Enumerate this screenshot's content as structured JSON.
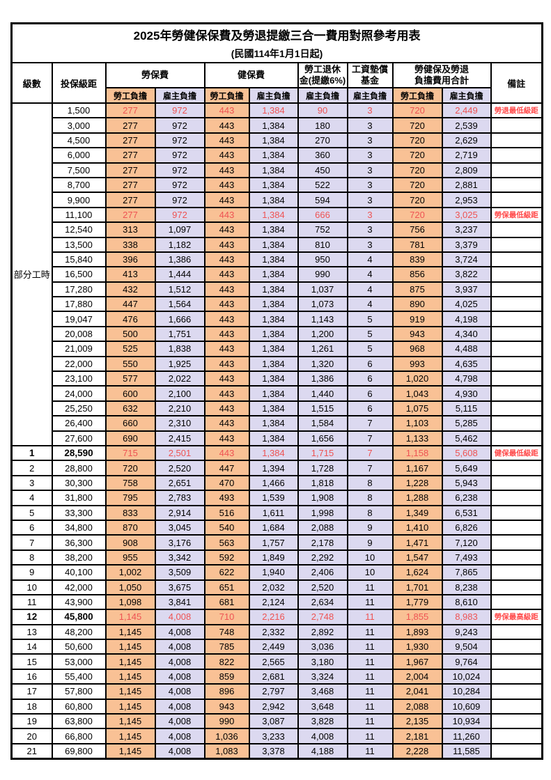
{
  "title": "2025年勞健保保費及勞退提繳三合一費用對照參考用表",
  "subtitle": "(民國114年1月1日起)",
  "header": {
    "level": "級數",
    "salary": "投保級距",
    "labor_group": "勞保費",
    "health_group": "健保費",
    "pension_group": "勞工退休\n金(提繳6%)",
    "wage_fund_group": "工資墊償\n基金",
    "total_group": "勞健保及勞退\n負擔費用合計",
    "remark": "備註",
    "employee": "勞工負擔",
    "employer": "雇主負擔"
  },
  "colors": {
    "employee_bg": "#f9c195",
    "employer_bg": "#dcd9f0",
    "highlight_text": "#ee5353",
    "remark_text": "#ff4b4b",
    "grid": "#000000"
  },
  "rows": [
    {
      "level": "部分工時",
      "group_rowspan": 23,
      "salary": "1,500",
      "labor_emp": "277",
      "labor_er": "972",
      "health_emp": "443",
      "health_er": "1,384",
      "pension_er": "90",
      "fund_er": "3",
      "total_emp": "720",
      "total_er": "2,449",
      "remark": "勞退最低級距",
      "red": true,
      "bold": false
    },
    {
      "salary": "3,000",
      "labor_emp": "277",
      "labor_er": "972",
      "health_emp": "443",
      "health_er": "1,384",
      "pension_er": "180",
      "fund_er": "3",
      "total_emp": "720",
      "total_er": "2,539",
      "remark": "",
      "red": false,
      "bold": false
    },
    {
      "salary": "4,500",
      "labor_emp": "277",
      "labor_er": "972",
      "health_emp": "443",
      "health_er": "1,384",
      "pension_er": "270",
      "fund_er": "3",
      "total_emp": "720",
      "total_er": "2,629",
      "remark": "",
      "red": false,
      "bold": false
    },
    {
      "salary": "6,000",
      "labor_emp": "277",
      "labor_er": "972",
      "health_emp": "443",
      "health_er": "1,384",
      "pension_er": "360",
      "fund_er": "3",
      "total_emp": "720",
      "total_er": "2,719",
      "remark": "",
      "red": false,
      "bold": false
    },
    {
      "salary": "7,500",
      "labor_emp": "277",
      "labor_er": "972",
      "health_emp": "443",
      "health_er": "1,384",
      "pension_er": "450",
      "fund_er": "3",
      "total_emp": "720",
      "total_er": "2,809",
      "remark": "",
      "red": false,
      "bold": false
    },
    {
      "salary": "8,700",
      "labor_emp": "277",
      "labor_er": "972",
      "health_emp": "443",
      "health_er": "1,384",
      "pension_er": "522",
      "fund_er": "3",
      "total_emp": "720",
      "total_er": "2,881",
      "remark": "",
      "red": false,
      "bold": false
    },
    {
      "salary": "9,900",
      "labor_emp": "277",
      "labor_er": "972",
      "health_emp": "443",
      "health_er": "1,384",
      "pension_er": "594",
      "fund_er": "3",
      "total_emp": "720",
      "total_er": "2,953",
      "remark": "",
      "red": false,
      "bold": false
    },
    {
      "salary": "11,100",
      "labor_emp": "277",
      "labor_er": "972",
      "health_emp": "443",
      "health_er": "1,384",
      "pension_er": "666",
      "fund_er": "3",
      "total_emp": "720",
      "total_er": "3,025",
      "remark": "勞保最低級距",
      "red": true,
      "bold": false
    },
    {
      "salary": "12,540",
      "labor_emp": "313",
      "labor_er": "1,097",
      "health_emp": "443",
      "health_er": "1,384",
      "pension_er": "752",
      "fund_er": "3",
      "total_emp": "756",
      "total_er": "3,237",
      "remark": "",
      "red": false,
      "bold": false
    },
    {
      "salary": "13,500",
      "labor_emp": "338",
      "labor_er": "1,182",
      "health_emp": "443",
      "health_er": "1,384",
      "pension_er": "810",
      "fund_er": "3",
      "total_emp": "781",
      "total_er": "3,379",
      "remark": "",
      "red": false,
      "bold": false
    },
    {
      "salary": "15,840",
      "labor_emp": "396",
      "labor_er": "1,386",
      "health_emp": "443",
      "health_er": "1,384",
      "pension_er": "950",
      "fund_er": "4",
      "total_emp": "839",
      "total_er": "3,724",
      "remark": "",
      "red": false,
      "bold": false
    },
    {
      "salary": "16,500",
      "labor_emp": "413",
      "labor_er": "1,444",
      "health_emp": "443",
      "health_er": "1,384",
      "pension_er": "990",
      "fund_er": "4",
      "total_emp": "856",
      "total_er": "3,822",
      "remark": "",
      "red": false,
      "bold": false
    },
    {
      "salary": "17,280",
      "labor_emp": "432",
      "labor_er": "1,512",
      "health_emp": "443",
      "health_er": "1,384",
      "pension_er": "1,037",
      "fund_er": "4",
      "total_emp": "875",
      "total_er": "3,937",
      "remark": "",
      "red": false,
      "bold": false
    },
    {
      "salary": "17,880",
      "labor_emp": "447",
      "labor_er": "1,564",
      "health_emp": "443",
      "health_er": "1,384",
      "pension_er": "1,073",
      "fund_er": "4",
      "total_emp": "890",
      "total_er": "4,025",
      "remark": "",
      "red": false,
      "bold": false
    },
    {
      "salary": "19,047",
      "labor_emp": "476",
      "labor_er": "1,666",
      "health_emp": "443",
      "health_er": "1,384",
      "pension_er": "1,143",
      "fund_er": "5",
      "total_emp": "919",
      "total_er": "4,198",
      "remark": "",
      "red": false,
      "bold": false
    },
    {
      "salary": "20,008",
      "labor_emp": "500",
      "labor_er": "1,751",
      "health_emp": "443",
      "health_er": "1,384",
      "pension_er": "1,200",
      "fund_er": "5",
      "total_emp": "943",
      "total_er": "4,340",
      "remark": "",
      "red": false,
      "bold": false
    },
    {
      "salary": "21,009",
      "labor_emp": "525",
      "labor_er": "1,838",
      "health_emp": "443",
      "health_er": "1,384",
      "pension_er": "1,261",
      "fund_er": "5",
      "total_emp": "968",
      "total_er": "4,488",
      "remark": "",
      "red": false,
      "bold": false
    },
    {
      "salary": "22,000",
      "labor_emp": "550",
      "labor_er": "1,925",
      "health_emp": "443",
      "health_er": "1,384",
      "pension_er": "1,320",
      "fund_er": "6",
      "total_emp": "993",
      "total_er": "4,635",
      "remark": "",
      "red": false,
      "bold": false
    },
    {
      "salary": "23,100",
      "labor_emp": "577",
      "labor_er": "2,022",
      "health_emp": "443",
      "health_er": "1,384",
      "pension_er": "1,386",
      "fund_er": "6",
      "total_emp": "1,020",
      "total_er": "4,798",
      "remark": "",
      "red": false,
      "bold": false
    },
    {
      "salary": "24,000",
      "labor_emp": "600",
      "labor_er": "2,100",
      "health_emp": "443",
      "health_er": "1,384",
      "pension_er": "1,440",
      "fund_er": "6",
      "total_emp": "1,043",
      "total_er": "4,930",
      "remark": "",
      "red": false,
      "bold": false
    },
    {
      "salary": "25,250",
      "labor_emp": "632",
      "labor_er": "2,210",
      "health_emp": "443",
      "health_er": "1,384",
      "pension_er": "1,515",
      "fund_er": "6",
      "total_emp": "1,075",
      "total_er": "5,115",
      "remark": "",
      "red": false,
      "bold": false
    },
    {
      "salary": "26,400",
      "labor_emp": "660",
      "labor_er": "2,310",
      "health_emp": "443",
      "health_er": "1,384",
      "pension_er": "1,584",
      "fund_er": "7",
      "total_emp": "1,103",
      "total_er": "5,285",
      "remark": "",
      "red": false,
      "bold": false
    },
    {
      "salary": "27,600",
      "labor_emp": "690",
      "labor_er": "2,415",
      "health_emp": "443",
      "health_er": "1,384",
      "pension_er": "1,656",
      "fund_er": "7",
      "total_emp": "1,133",
      "total_er": "5,462",
      "remark": "",
      "red": false,
      "bold": false
    },
    {
      "level": "1",
      "salary": "28,590",
      "labor_emp": "715",
      "labor_er": "2,501",
      "health_emp": "443",
      "health_er": "1,384",
      "pension_er": "1,715",
      "fund_er": "7",
      "total_emp": "1,158",
      "total_er": "5,608",
      "remark": "健保最低級距",
      "red": true,
      "bold": true
    },
    {
      "level": "2",
      "salary": "28,800",
      "labor_emp": "720",
      "labor_er": "2,520",
      "health_emp": "447",
      "health_er": "1,394",
      "pension_er": "1,728",
      "fund_er": "7",
      "total_emp": "1,167",
      "total_er": "5,649",
      "remark": "",
      "red": false,
      "bold": false
    },
    {
      "level": "3",
      "salary": "30,300",
      "labor_emp": "758",
      "labor_er": "2,651",
      "health_emp": "470",
      "health_er": "1,466",
      "pension_er": "1,818",
      "fund_er": "8",
      "total_emp": "1,228",
      "total_er": "5,943",
      "remark": "",
      "red": false,
      "bold": false
    },
    {
      "level": "4",
      "salary": "31,800",
      "labor_emp": "795",
      "labor_er": "2,783",
      "health_emp": "493",
      "health_er": "1,539",
      "pension_er": "1,908",
      "fund_er": "8",
      "total_emp": "1,288",
      "total_er": "6,238",
      "remark": "",
      "red": false,
      "bold": false
    },
    {
      "level": "5",
      "salary": "33,300",
      "labor_emp": "833",
      "labor_er": "2,914",
      "health_emp": "516",
      "health_er": "1,611",
      "pension_er": "1,998",
      "fund_er": "8",
      "total_emp": "1,349",
      "total_er": "6,531",
      "remark": "",
      "red": false,
      "bold": false
    },
    {
      "level": "6",
      "salary": "34,800",
      "labor_emp": "870",
      "labor_er": "3,045",
      "health_emp": "540",
      "health_er": "1,684",
      "pension_er": "2,088",
      "fund_er": "9",
      "total_emp": "1,410",
      "total_er": "6,826",
      "remark": "",
      "red": false,
      "bold": false
    },
    {
      "level": "7",
      "salary": "36,300",
      "labor_emp": "908",
      "labor_er": "3,176",
      "health_emp": "563",
      "health_er": "1,757",
      "pension_er": "2,178",
      "fund_er": "9",
      "total_emp": "1,471",
      "total_er": "7,120",
      "remark": "",
      "red": false,
      "bold": false
    },
    {
      "level": "8",
      "salary": "38,200",
      "labor_emp": "955",
      "labor_er": "3,342",
      "health_emp": "592",
      "health_er": "1,849",
      "pension_er": "2,292",
      "fund_er": "10",
      "total_emp": "1,547",
      "total_er": "7,493",
      "remark": "",
      "red": false,
      "bold": false
    },
    {
      "level": "9",
      "salary": "40,100",
      "labor_emp": "1,002",
      "labor_er": "3,509",
      "health_emp": "622",
      "health_er": "1,940",
      "pension_er": "2,406",
      "fund_er": "10",
      "total_emp": "1,624",
      "total_er": "7,865",
      "remark": "",
      "red": false,
      "bold": false
    },
    {
      "level": "10",
      "salary": "42,000",
      "labor_emp": "1,050",
      "labor_er": "3,675",
      "health_emp": "651",
      "health_er": "2,032",
      "pension_er": "2,520",
      "fund_er": "11",
      "total_emp": "1,701",
      "total_er": "8,238",
      "remark": "",
      "red": false,
      "bold": false
    },
    {
      "level": "11",
      "salary": "43,900",
      "labor_emp": "1,098",
      "labor_er": "3,841",
      "health_emp": "681",
      "health_er": "2,124",
      "pension_er": "2,634",
      "fund_er": "11",
      "total_emp": "1,779",
      "total_er": "8,610",
      "remark": "",
      "red": false,
      "bold": false
    },
    {
      "level": "12",
      "salary": "45,800",
      "labor_emp": "1,145",
      "labor_er": "4,008",
      "health_emp": "710",
      "health_er": "2,216",
      "pension_er": "2,748",
      "fund_er": "11",
      "total_emp": "1,855",
      "total_er": "8,983",
      "remark": "勞保最高級距",
      "red": true,
      "bold": true
    },
    {
      "level": "13",
      "salary": "48,200",
      "labor_emp": "1,145",
      "labor_er": "4,008",
      "health_emp": "748",
      "health_er": "2,332",
      "pension_er": "2,892",
      "fund_er": "11",
      "total_emp": "1,893",
      "total_er": "9,243",
      "remark": "",
      "red": false,
      "bold": false
    },
    {
      "level": "14",
      "salary": "50,600",
      "labor_emp": "1,145",
      "labor_er": "4,008",
      "health_emp": "785",
      "health_er": "2,449",
      "pension_er": "3,036",
      "fund_er": "11",
      "total_emp": "1,930",
      "total_er": "9,504",
      "remark": "",
      "red": false,
      "bold": false
    },
    {
      "level": "15",
      "salary": "53,000",
      "labor_emp": "1,145",
      "labor_er": "4,008",
      "health_emp": "822",
      "health_er": "2,565",
      "pension_er": "3,180",
      "fund_er": "11",
      "total_emp": "1,967",
      "total_er": "9,764",
      "remark": "",
      "red": false,
      "bold": false
    },
    {
      "level": "16",
      "salary": "55,400",
      "labor_emp": "1,145",
      "labor_er": "4,008",
      "health_emp": "859",
      "health_er": "2,681",
      "pension_er": "3,324",
      "fund_er": "11",
      "total_emp": "2,004",
      "total_er": "10,024",
      "remark": "",
      "red": false,
      "bold": false
    },
    {
      "level": "17",
      "salary": "57,800",
      "labor_emp": "1,145",
      "labor_er": "4,008",
      "health_emp": "896",
      "health_er": "2,797",
      "pension_er": "3,468",
      "fund_er": "11",
      "total_emp": "2,041",
      "total_er": "10,284",
      "remark": "",
      "red": false,
      "bold": false
    },
    {
      "level": "18",
      "salary": "60,800",
      "labor_emp": "1,145",
      "labor_er": "4,008",
      "health_emp": "943",
      "health_er": "2,942",
      "pension_er": "3,648",
      "fund_er": "11",
      "total_emp": "2,088",
      "total_er": "10,609",
      "remark": "",
      "red": false,
      "bold": false
    },
    {
      "level": "19",
      "salary": "63,800",
      "labor_emp": "1,145",
      "labor_er": "4,008",
      "health_emp": "990",
      "health_er": "3,087",
      "pension_er": "3,828",
      "fund_er": "11",
      "total_emp": "2,135",
      "total_er": "10,934",
      "remark": "",
      "red": false,
      "bold": false
    },
    {
      "level": "20",
      "salary": "66,800",
      "labor_emp": "1,145",
      "labor_er": "4,008",
      "health_emp": "1,036",
      "health_er": "3,233",
      "pension_er": "4,008",
      "fund_er": "11",
      "total_emp": "2,181",
      "total_er": "11,260",
      "remark": "",
      "red": false,
      "bold": false
    },
    {
      "level": "21",
      "salary": "69,800",
      "labor_emp": "1,145",
      "labor_er": "4,008",
      "health_emp": "1,083",
      "health_er": "3,378",
      "pension_er": "4,188",
      "fund_er": "11",
      "total_emp": "2,228",
      "total_er": "11,585",
      "remark": "",
      "red": false,
      "bold": false
    }
  ]
}
